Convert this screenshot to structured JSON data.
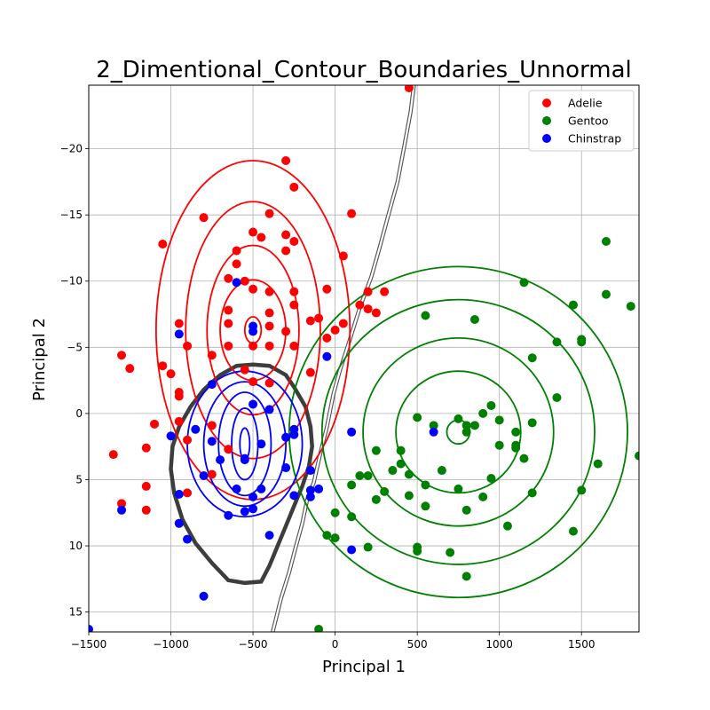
{
  "chart_data": {
    "type": "scatter",
    "title": "2_Dimentional_Contour_Boundaries_Unnormal",
    "xlabel": "Principal 1",
    "ylabel": "Principal 2",
    "xlim": [
      -1500,
      1850
    ],
    "ylim": [
      16.5,
      -24.8
    ],
    "y_inverted": true,
    "x_ticks": [
      -1500,
      -1000,
      -500,
      0,
      500,
      1000,
      1500
    ],
    "x_tick_labels": [
      "−1500",
      "−1000",
      "−500",
      "0",
      "500",
      "1000",
      "1500"
    ],
    "y_ticks": [
      -20,
      -15,
      -10,
      -5,
      0,
      5,
      10,
      15
    ],
    "y_tick_labels": [
      "−20",
      "−15",
      "−10",
      "−5",
      "0",
      "5",
      "10",
      "15"
    ],
    "grid": true,
    "legend_position": "top-right",
    "series": [
      {
        "name": "Adelie",
        "color": "#ff0000",
        "points": [
          [
            450,
            -24.6
          ],
          [
            -300,
            -19.1
          ],
          [
            -250,
            -17.1
          ],
          [
            -800,
            -14.8
          ],
          [
            100,
            -15.1
          ],
          [
            -400,
            -15.1
          ],
          [
            -1050,
            -12.8
          ],
          [
            -500,
            -13.7
          ],
          [
            -450,
            -13.3
          ],
          [
            -300,
            -13.5
          ],
          [
            -250,
            -13
          ],
          [
            -600,
            -12.3
          ],
          [
            -300,
            -12.3
          ],
          [
            50,
            -11.9
          ],
          [
            -600,
            -11.3
          ],
          [
            -650,
            -10.2
          ],
          [
            -550,
            -10
          ],
          [
            -500,
            -9.4
          ],
          [
            -400,
            -9.2
          ],
          [
            -250,
            -9.2
          ],
          [
            -50,
            -9.4
          ],
          [
            200,
            -9.2
          ],
          [
            300,
            -9.2
          ],
          [
            -650,
            -7.8
          ],
          [
            -400,
            -7.6
          ],
          [
            -250,
            -8.2
          ],
          [
            150,
            -8.2
          ],
          [
            200,
            -7.9
          ],
          [
            250,
            -7.6
          ],
          [
            -950,
            -6.8
          ],
          [
            -650,
            -6.8
          ],
          [
            -400,
            -6.6
          ],
          [
            -150,
            -7
          ],
          [
            -100,
            -7.2
          ],
          [
            0,
            -6.3
          ],
          [
            50,
            -6.8
          ],
          [
            -50,
            -5.7
          ],
          [
            -300,
            -6.2
          ],
          [
            -900,
            -5.1
          ],
          [
            -650,
            -5.1
          ],
          [
            -500,
            -5.1
          ],
          [
            -400,
            -5.1
          ],
          [
            -250,
            -5.1
          ],
          [
            -1300,
            -4.4
          ],
          [
            -1250,
            -3.4
          ],
          [
            -1050,
            -3.6
          ],
          [
            -1000,
            -3
          ],
          [
            -750,
            -4.4
          ],
          [
            -550,
            -3.3
          ],
          [
            -150,
            -3.1
          ],
          [
            -950,
            -1.6
          ],
          [
            -950,
            -1.3
          ],
          [
            -500,
            -2.4
          ],
          [
            -400,
            -2.3
          ],
          [
            -1100,
            0.8
          ],
          [
            -950,
            0.6
          ],
          [
            -900,
            2
          ],
          [
            -750,
            0.9
          ],
          [
            -650,
            2.7
          ],
          [
            -1150,
            2.6
          ],
          [
            -1350,
            3.1
          ],
          [
            -750,
            4.6
          ],
          [
            -1150,
            5.5
          ],
          [
            -900,
            6
          ],
          [
            -1300,
            6.8
          ],
          [
            -1150,
            7.3
          ],
          [
            -950,
            8.3
          ]
        ]
      },
      {
        "name": "Gentoo",
        "color": "#008000",
        "points": [
          [
            1650,
            -13
          ],
          [
            1150,
            -9.9
          ],
          [
            1450,
            -8.2
          ],
          [
            1650,
            -9
          ],
          [
            1800,
            -8.1
          ],
          [
            850,
            -7.1
          ],
          [
            550,
            -7.4
          ],
          [
            1350,
            -5.4
          ],
          [
            1500,
            -5.4
          ],
          [
            1500,
            -5.6
          ],
          [
            1200,
            -4.2
          ],
          [
            1350,
            -1.2
          ],
          [
            950,
            -0.6
          ],
          [
            900,
            0
          ],
          [
            750,
            0.4
          ],
          [
            500,
            0.3
          ],
          [
            1000,
            0.5
          ],
          [
            1100,
            1.4
          ],
          [
            1200,
            0.7
          ],
          [
            600,
            0.9
          ],
          [
            800,
            0.9
          ],
          [
            800,
            1.4
          ],
          [
            850,
            0.9
          ],
          [
            400,
            2.8
          ],
          [
            250,
            2.8
          ],
          [
            1000,
            2.4
          ],
          [
            1100,
            2.4
          ],
          [
            1100,
            2.6
          ],
          [
            400,
            3.8
          ],
          [
            350,
            4.3
          ],
          [
            450,
            4.6
          ],
          [
            650,
            4.3
          ],
          [
            1150,
            3.4
          ],
          [
            1600,
            3.8
          ],
          [
            1850,
            3.2
          ],
          [
            100,
            5.4
          ],
          [
            150,
            4.7
          ],
          [
            200,
            4.7
          ],
          [
            300,
            5.9
          ],
          [
            450,
            6.2
          ],
          [
            550,
            5.4
          ],
          [
            750,
            5.7
          ],
          [
            950,
            4.9
          ],
          [
            250,
            6.5
          ],
          [
            550,
            7
          ],
          [
            900,
            6.3
          ],
          [
            1200,
            6
          ],
          [
            1500,
            5.8
          ],
          [
            0,
            7.5
          ],
          [
            100,
            7.8
          ],
          [
            800,
            7.3
          ],
          [
            1050,
            8.5
          ],
          [
            1450,
            8.9
          ],
          [
            -50,
            9.2
          ],
          [
            0,
            9.4
          ],
          [
            200,
            10.1
          ],
          [
            500,
            10.1
          ],
          [
            500,
            10.4
          ],
          [
            700,
            10.5
          ],
          [
            800,
            12.3
          ],
          [
            -100,
            16.3
          ]
        ]
      },
      {
        "name": "Chinstrap",
        "color": "#0000ff",
        "points": [
          [
            -500,
            -6.6
          ],
          [
            -500,
            -6.2
          ],
          [
            -950,
            -6
          ],
          [
            -600,
            -9.9
          ],
          [
            -50,
            -4.3
          ],
          [
            -750,
            -2.2
          ],
          [
            -500,
            -0.7
          ],
          [
            -400,
            -0.3
          ],
          [
            -250,
            1.2
          ],
          [
            -850,
            1.2
          ],
          [
            -1000,
            1.7
          ],
          [
            -750,
            2.1
          ],
          [
            -450,
            2.3
          ],
          [
            -250,
            1.6
          ],
          [
            -300,
            1.8
          ],
          [
            100,
            1.4
          ],
          [
            600,
            1.4
          ],
          [
            -700,
            3.5
          ],
          [
            -550,
            3.5
          ],
          [
            -550,
            3.4
          ],
          [
            -150,
            4.3
          ],
          [
            -300,
            4.1
          ],
          [
            -800,
            4.7
          ],
          [
            -600,
            5.7
          ],
          [
            -450,
            5.7
          ],
          [
            -250,
            6.2
          ],
          [
            -150,
            6.3
          ],
          [
            -150,
            5.8
          ],
          [
            -100,
            5.7
          ],
          [
            -950,
            6.1
          ],
          [
            -500,
            6.3
          ],
          [
            -1300,
            7.3
          ],
          [
            -650,
            7.7
          ],
          [
            -550,
            7.4
          ],
          [
            -500,
            7.2
          ],
          [
            -950,
            8.3
          ],
          [
            -900,
            9.5
          ],
          [
            -400,
            9.2
          ],
          [
            100,
            10.3
          ],
          [
            -800,
            13.8
          ],
          [
            -1500,
            16.3
          ]
        ]
      }
    ],
    "contours": [
      {
        "class": "Adelie",
        "color": "#ff0000",
        "center": [
          -500,
          -6.3
        ],
        "radii_x": [
          50,
          200,
          280,
          410,
          590
        ],
        "radii_y": [
          1,
          3.8,
          6.4,
          9.7,
          12.8
        ]
      },
      {
        "class": "Gentoo",
        "color": "#008000",
        "center": [
          750,
          1.4
        ],
        "radii_x": [
          70,
          380,
          580,
          830,
          1030
        ],
        "radii_y": [
          0.9,
          4.6,
          7.1,
          10,
          12.5
        ]
      },
      {
        "class": "Chinstrap",
        "color": "#0000ff",
        "center": [
          -550,
          2.3
        ],
        "radii_x": [
          30,
          80,
          160,
          250,
          350
        ],
        "radii_y": [
          1.2,
          2.7,
          3.9,
          4.7,
          5.5
        ]
      }
    ],
    "boundaries": [
      {
        "color": "#333333",
        "type": "closed",
        "points": [
          [
            -500,
            -3.7
          ],
          [
            -400,
            -3.6
          ],
          [
            -300,
            -2.9
          ],
          [
            -250,
            -2
          ],
          [
            -180,
            -0.5
          ],
          [
            -150,
            1
          ],
          [
            -140,
            2.5
          ],
          [
            -160,
            4
          ],
          [
            -200,
            5.5
          ],
          [
            -250,
            7
          ],
          [
            -300,
            8.5
          ],
          [
            -350,
            10
          ],
          [
            -400,
            11.5
          ],
          [
            -450,
            12.7
          ],
          [
            -550,
            12.8
          ],
          [
            -650,
            12.6
          ],
          [
            -750,
            11.3
          ],
          [
            -850,
            9.8
          ],
          [
            -930,
            8
          ],
          [
            -980,
            6
          ],
          [
            -1000,
            4.2
          ],
          [
            -990,
            2.5
          ],
          [
            -950,
            1
          ],
          [
            -880,
            -0.5
          ],
          [
            -800,
            -1.8
          ],
          [
            -700,
            -2.9
          ],
          [
            -600,
            -3.6
          ]
        ]
      },
      {
        "color": "#555555",
        "type": "open",
        "points": [
          [
            -380,
            16.5
          ],
          [
            -330,
            14
          ],
          [
            -280,
            12
          ],
          [
            -240,
            10.1
          ],
          [
            -200,
            8.3
          ],
          [
            -170,
            6.5
          ],
          [
            -130,
            5.2
          ],
          [
            -90,
            3
          ],
          [
            -50,
            1
          ],
          [
            -10,
            -1.5
          ],
          [
            30,
            -3.3
          ],
          [
            90,
            -5.6
          ],
          [
            150,
            -8
          ],
          [
            220,
            -10.3
          ],
          [
            270,
            -12.5
          ],
          [
            320,
            -14.8
          ],
          [
            380,
            -17.5
          ],
          [
            420,
            -20.1
          ],
          [
            460,
            -22.8
          ],
          [
            480,
            -24.8
          ]
        ]
      }
    ]
  }
}
